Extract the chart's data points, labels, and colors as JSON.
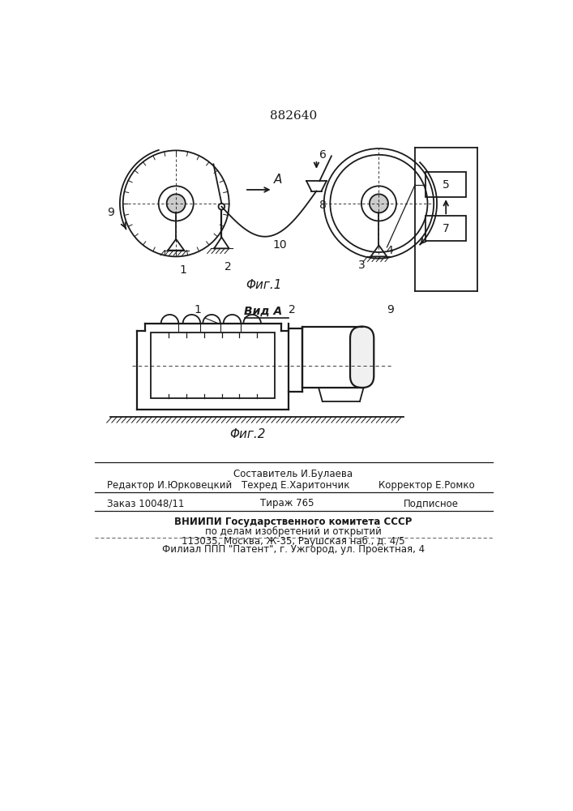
{
  "patent_number": "882640",
  "fig1_label": "Φиг.1",
  "fig2_label": "Φиг.2",
  "view_label": "Вид A",
  "bg_color": "#ffffff",
  "line_color": "#1a1a1a"
}
